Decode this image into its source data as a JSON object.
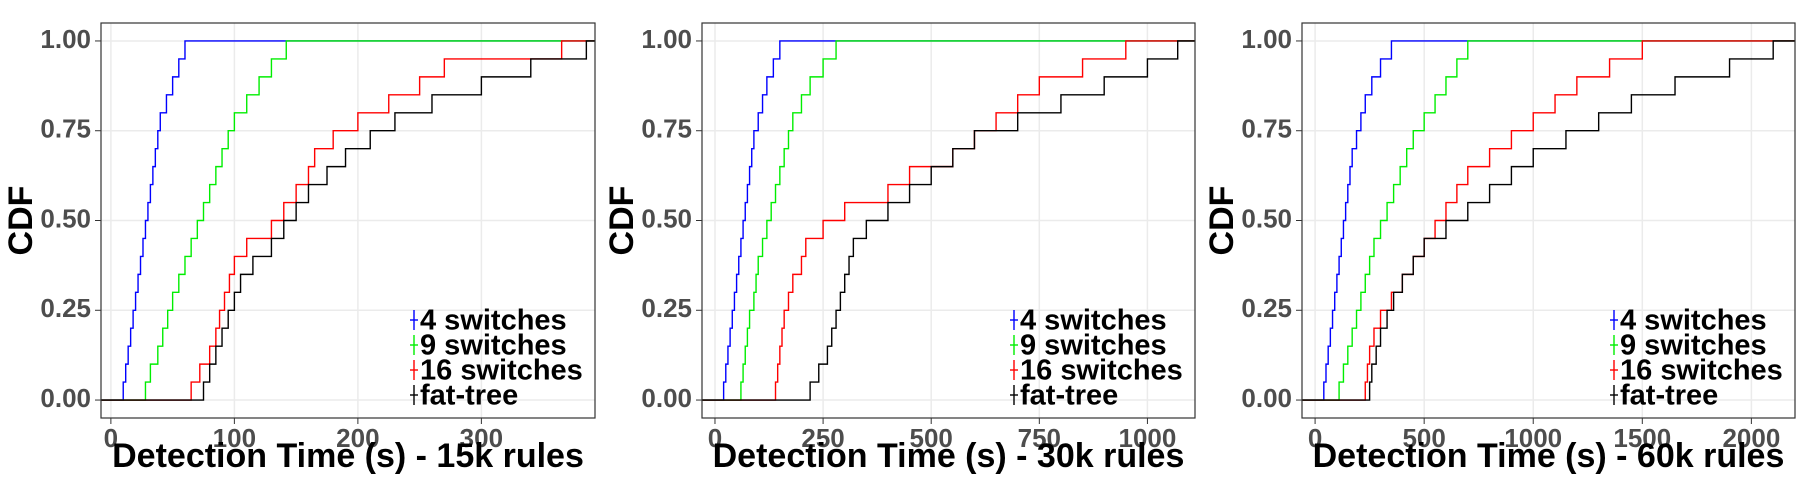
{
  "chart_data": [
    {
      "type": "step",
      "xlabel": "Detection Time (s) - 15k rules",
      "ylabel": "CDF",
      "xlim": [
        -8,
        392
      ],
      "xticks": [
        0,
        100,
        200,
        300
      ],
      "ylim": [
        -0.05,
        1.05
      ],
      "yticks": [
        {
          "value": 0,
          "label": "0.00"
        },
        {
          "value": 0.25,
          "label": "0.25"
        },
        {
          "value": 0.5,
          "label": "0.50"
        },
        {
          "value": 0.75,
          "label": "0.75"
        },
        {
          "value": 1,
          "label": "1.00"
        }
      ],
      "grid": true,
      "legend": "bottom-right",
      "series": [
        {
          "name": "4 switches",
          "color": "#0000ff",
          "x": [
            10,
            12,
            14,
            16,
            18,
            20,
            22,
            24,
            26,
            28,
            30,
            32,
            34,
            36,
            38,
            40,
            45,
            50,
            55,
            60
          ],
          "values": [
            0.05,
            0.1,
            0.15,
            0.2,
            0.25,
            0.3,
            0.35,
            0.4,
            0.45,
            0.5,
            0.55,
            0.6,
            0.65,
            0.7,
            0.75,
            0.8,
            0.85,
            0.9,
            0.95,
            1
          ]
        },
        {
          "name": "9 switches",
          "color": "#00ee00",
          "x": [
            28,
            32,
            38,
            42,
            46,
            50,
            55,
            60,
            65,
            70,
            75,
            80,
            85,
            90,
            95,
            100,
            110,
            120,
            130,
            142
          ],
          "values": [
            0.05,
            0.1,
            0.15,
            0.2,
            0.25,
            0.3,
            0.35,
            0.4,
            0.45,
            0.5,
            0.55,
            0.6,
            0.65,
            0.7,
            0.75,
            0.8,
            0.85,
            0.9,
            0.95,
            1
          ]
        },
        {
          "name": "16 switches",
          "color": "#ff0000",
          "x": [
            65,
            72,
            80,
            85,
            88,
            92,
            96,
            100,
            110,
            130,
            140,
            150,
            160,
            165,
            180,
            200,
            225,
            250,
            270,
            365
          ],
          "values": [
            0.05,
            0.1,
            0.15,
            0.2,
            0.25,
            0.3,
            0.35,
            0.4,
            0.45,
            0.5,
            0.55,
            0.6,
            0.65,
            0.7,
            0.75,
            0.8,
            0.85,
            0.9,
            0.95,
            1
          ]
        },
        {
          "name": "fat-tree",
          "color": "#000000",
          "x": [
            75,
            80,
            85,
            90,
            95,
            100,
            105,
            115,
            130,
            140,
            150,
            160,
            175,
            190,
            210,
            230,
            260,
            300,
            340,
            385
          ],
          "values": [
            0.05,
            0.1,
            0.15,
            0.2,
            0.25,
            0.3,
            0.35,
            0.4,
            0.45,
            0.5,
            0.55,
            0.6,
            0.65,
            0.7,
            0.75,
            0.8,
            0.85,
            0.9,
            0.95,
            1
          ]
        }
      ]
    },
    {
      "type": "step",
      "xlabel": "Detection Time (s) - 30k rules",
      "ylabel": "CDF",
      "xlim": [
        -30,
        1110
      ],
      "xticks": [
        0,
        250,
        500,
        750,
        1000
      ],
      "ylim": [
        -0.05,
        1.05
      ],
      "yticks": [
        {
          "value": 0,
          "label": "0.00"
        },
        {
          "value": 0.25,
          "label": "0.25"
        },
        {
          "value": 0.5,
          "label": "0.50"
        },
        {
          "value": 0.75,
          "label": "0.75"
        },
        {
          "value": 1,
          "label": "1.00"
        }
      ],
      "grid": true,
      "legend": "bottom-right",
      "series": [
        {
          "name": "4 switches",
          "color": "#0000ff",
          "x": [
            20,
            25,
            30,
            35,
            40,
            45,
            50,
            55,
            60,
            65,
            70,
            75,
            80,
            85,
            90,
            100,
            110,
            120,
            135,
            150
          ],
          "values": [
            0.05,
            0.1,
            0.15,
            0.2,
            0.25,
            0.3,
            0.35,
            0.4,
            0.45,
            0.5,
            0.55,
            0.6,
            0.65,
            0.7,
            0.75,
            0.8,
            0.85,
            0.9,
            0.95,
            1
          ]
        },
        {
          "name": "9 switches",
          "color": "#00ee00",
          "x": [
            60,
            65,
            70,
            75,
            80,
            90,
            95,
            100,
            110,
            120,
            130,
            140,
            150,
            160,
            170,
            180,
            200,
            220,
            250,
            280
          ],
          "values": [
            0.05,
            0.1,
            0.15,
            0.2,
            0.25,
            0.3,
            0.35,
            0.4,
            0.45,
            0.5,
            0.55,
            0.6,
            0.65,
            0.7,
            0.75,
            0.8,
            0.85,
            0.9,
            0.95,
            1
          ]
        },
        {
          "name": "16 switches",
          "color": "#ff0000",
          "x": [
            140,
            145,
            150,
            155,
            160,
            170,
            180,
            200,
            210,
            250,
            300,
            400,
            450,
            550,
            600,
            650,
            700,
            750,
            850,
            950
          ],
          "values": [
            0.05,
            0.1,
            0.15,
            0.2,
            0.25,
            0.3,
            0.35,
            0.4,
            0.45,
            0.5,
            0.55,
            0.6,
            0.65,
            0.7,
            0.75,
            0.8,
            0.85,
            0.9,
            0.95,
            1
          ]
        },
        {
          "name": "fat-tree",
          "color": "#000000",
          "x": [
            220,
            240,
            260,
            270,
            280,
            290,
            300,
            310,
            320,
            350,
            400,
            450,
            500,
            550,
            600,
            700,
            800,
            900,
            1000,
            1070
          ],
          "values": [
            0.05,
            0.1,
            0.15,
            0.2,
            0.25,
            0.3,
            0.35,
            0.4,
            0.45,
            0.5,
            0.55,
            0.6,
            0.65,
            0.7,
            0.75,
            0.8,
            0.85,
            0.9,
            0.95,
            1
          ]
        }
      ]
    },
    {
      "type": "step",
      "xlabel": "Detection Time (s) - 60k rules",
      "ylabel": "CDF",
      "xlim": [
        -60,
        2200
      ],
      "xticks": [
        0,
        500,
        1000,
        1500,
        2000
      ],
      "ylim": [
        -0.05,
        1.05
      ],
      "yticks": [
        {
          "value": 0,
          "label": "0.00"
        },
        {
          "value": 0.25,
          "label": "0.25"
        },
        {
          "value": 0.5,
          "label": "0.50"
        },
        {
          "value": 0.75,
          "label": "0.75"
        },
        {
          "value": 1,
          "label": "1.00"
        }
      ],
      "grid": true,
      "legend": "bottom-right",
      "series": [
        {
          "name": "4 switches",
          "color": "#0000ff",
          "x": [
            40,
            50,
            60,
            70,
            80,
            90,
            100,
            110,
            120,
            130,
            140,
            150,
            160,
            170,
            190,
            210,
            230,
            260,
            300,
            350
          ],
          "values": [
            0.05,
            0.1,
            0.15,
            0.2,
            0.25,
            0.3,
            0.35,
            0.4,
            0.45,
            0.5,
            0.55,
            0.6,
            0.65,
            0.7,
            0.75,
            0.8,
            0.85,
            0.9,
            0.95,
            1
          ]
        },
        {
          "name": "9 switches",
          "color": "#00ee00",
          "x": [
            110,
            130,
            150,
            170,
            190,
            210,
            230,
            250,
            270,
            300,
            330,
            360,
            390,
            420,
            450,
            500,
            550,
            600,
            650,
            700
          ],
          "values": [
            0.05,
            0.1,
            0.15,
            0.2,
            0.25,
            0.3,
            0.35,
            0.4,
            0.45,
            0.5,
            0.55,
            0.6,
            0.65,
            0.7,
            0.75,
            0.8,
            0.85,
            0.9,
            0.95,
            1
          ]
        },
        {
          "name": "16 switches",
          "color": "#ff0000",
          "x": [
            230,
            240,
            250,
            270,
            300,
            350,
            400,
            450,
            500,
            550,
            600,
            650,
            700,
            800,
            900,
            1000,
            1100,
            1200,
            1350,
            1500
          ],
          "values": [
            0.05,
            0.1,
            0.15,
            0.2,
            0.25,
            0.3,
            0.35,
            0.4,
            0.45,
            0.5,
            0.55,
            0.6,
            0.65,
            0.7,
            0.75,
            0.8,
            0.85,
            0.9,
            0.95,
            1
          ]
        },
        {
          "name": "fat-tree",
          "color": "#000000",
          "x": [
            250,
            260,
            280,
            300,
            330,
            360,
            400,
            450,
            500,
            600,
            700,
            800,
            900,
            1000,
            1150,
            1300,
            1450,
            1650,
            1900,
            2100
          ],
          "values": [
            0.05,
            0.1,
            0.15,
            0.2,
            0.25,
            0.3,
            0.35,
            0.4,
            0.45,
            0.5,
            0.55,
            0.6,
            0.65,
            0.7,
            0.75,
            0.8,
            0.85,
            0.9,
            0.95,
            1
          ]
        }
      ]
    }
  ]
}
